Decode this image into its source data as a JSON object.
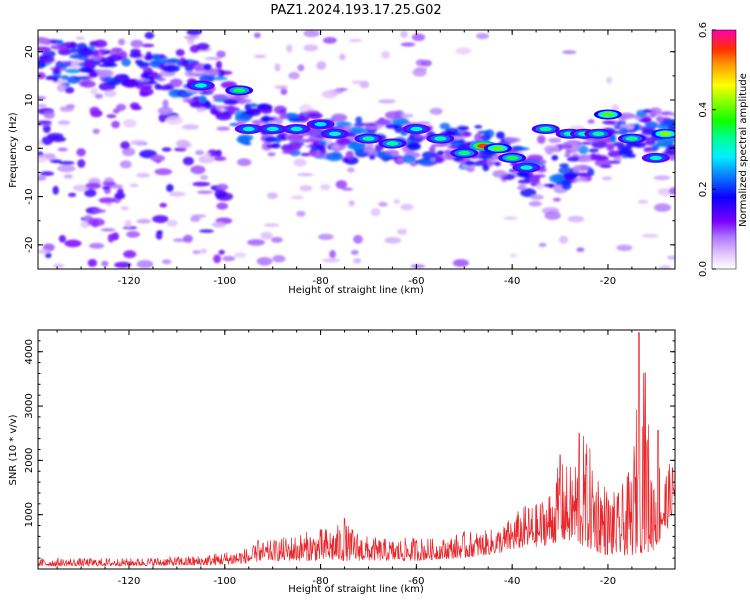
{
  "chart_data": [
    {
      "type": "heatmap",
      "title": "PAZ1.2024.193.17.25.G02",
      "xlabel": "Height of straight line (km)",
      "ylabel": "Frequency (Hz)",
      "xlim": [
        -139,
        -6
      ],
      "ylim": [
        -25,
        24.5
      ],
      "xticks": [
        "-120",
        "-100",
        "-80",
        "-60",
        "-40",
        "-20"
      ],
      "yticks": [
        "-20",
        "-10",
        "0",
        "10",
        "20"
      ],
      "colorbar": {
        "label": "Normalized spectral amplitude",
        "range": [
          0.0,
          0.6
        ],
        "ticks": [
          "0.0",
          "0.2",
          "0.4",
          "0.6"
        ],
        "colormap": "gist_ncar_r"
      },
      "ridge": {
        "x": [
          -139,
          -120,
          -108,
          -100,
          -95,
          -85,
          -75,
          -65,
          -55,
          -45,
          -40,
          -35,
          -30,
          -25,
          -20,
          -15,
          -10,
          -6
        ],
        "frequency": [
          18,
          16,
          14,
          11,
          5,
          3,
          2,
          1.5,
          0.5,
          0,
          -3,
          -6,
          -4,
          -2,
          1,
          3,
          3.5,
          2.5
        ]
      },
      "peaks": [
        {
          "x": -105,
          "frequency": 13,
          "amplitude": 0.3
        },
        {
          "x": -97,
          "frequency": 12,
          "amplitude": 0.35
        },
        {
          "x": -95,
          "frequency": 4,
          "amplitude": 0.3
        },
        {
          "x": -90,
          "frequency": 4,
          "amplitude": 0.3
        },
        {
          "x": -85,
          "frequency": 4,
          "amplitude": 0.3
        },
        {
          "x": -80,
          "frequency": 5,
          "amplitude": 0.28
        },
        {
          "x": -77,
          "frequency": 3,
          "amplitude": 0.3
        },
        {
          "x": -70,
          "frequency": 2,
          "amplitude": 0.32
        },
        {
          "x": -65,
          "frequency": 1,
          "amplitude": 0.33
        },
        {
          "x": -60,
          "frequency": 4,
          "amplitude": 0.3
        },
        {
          "x": -55,
          "frequency": 2,
          "amplitude": 0.32
        },
        {
          "x": -50,
          "frequency": -1,
          "amplitude": 0.34
        },
        {
          "x": -46,
          "frequency": 0.5,
          "amplitude": 0.55
        },
        {
          "x": -43,
          "frequency": 0,
          "amplitude": 0.4
        },
        {
          "x": -40,
          "frequency": -2,
          "amplitude": 0.35
        },
        {
          "x": -37,
          "frequency": -4,
          "amplitude": 0.3
        },
        {
          "x": -33,
          "frequency": 4,
          "amplitude": 0.33
        },
        {
          "x": -28,
          "frequency": 3,
          "amplitude": 0.32
        },
        {
          "x": -25,
          "frequency": 3,
          "amplitude": 0.32
        },
        {
          "x": -22,
          "frequency": 3,
          "amplitude": 0.32
        },
        {
          "x": -20,
          "frequency": 7,
          "amplitude": 0.4
        },
        {
          "x": -15,
          "frequency": 2,
          "amplitude": 0.33
        },
        {
          "x": -10,
          "frequency": -2,
          "amplitude": 0.3
        },
        {
          "x": -8,
          "frequency": 3,
          "amplitude": 0.42
        }
      ]
    },
    {
      "type": "line",
      "xlabel": "Height of straight line (km)",
      "ylabel": "SNR (10 * v/v)",
      "xlim": [
        -139,
        -6
      ],
      "ylim": [
        0,
        4400
      ],
      "xticks": [
        "-120",
        "-100",
        "-80",
        "-60",
        "-40",
        "-20"
      ],
      "yticks": [
        "1000",
        "2000",
        "3000",
        "4000"
      ],
      "line_color": "#e8262b",
      "envelope": {
        "x": [
          -139,
          -120,
          -105,
          -95,
          -92,
          -85,
          -80,
          -75,
          -70,
          -65,
          -60,
          -55,
          -50,
          -46,
          -42,
          -40,
          -37,
          -35,
          -32,
          -30,
          -28,
          -25,
          -22,
          -20,
          -18,
          -15,
          -13,
          -12,
          -11,
          -10,
          -8,
          -6
        ],
        "low": [
          50,
          60,
          60,
          100,
          150,
          150,
          150,
          150,
          150,
          150,
          150,
          180,
          200,
          250,
          300,
          350,
          400,
          400,
          450,
          500,
          500,
          400,
          300,
          250,
          250,
          250,
          300,
          300,
          300,
          400,
          600,
          1200
        ],
        "high": [
          200,
          200,
          250,
          400,
          500,
          650,
          750,
          850,
          600,
          550,
          600,
          550,
          700,
          700,
          800,
          1000,
          1200,
          1200,
          1500,
          2000,
          1900,
          2500,
          1900,
          1500,
          1400,
          1900,
          4350,
          3600,
          2000,
          2500,
          1900,
          2000
        ]
      },
      "spikes": [
        {
          "x": -13.5,
          "y": 4350
        },
        {
          "x": -12.5,
          "y": 3600
        },
        {
          "x": -26,
          "y": 2500
        },
        {
          "x": -30,
          "y": 2100
        },
        {
          "x": -9.5,
          "y": 2550
        },
        {
          "x": -75,
          "y": 930
        },
        {
          "x": -93,
          "y": 520
        }
      ]
    }
  ]
}
